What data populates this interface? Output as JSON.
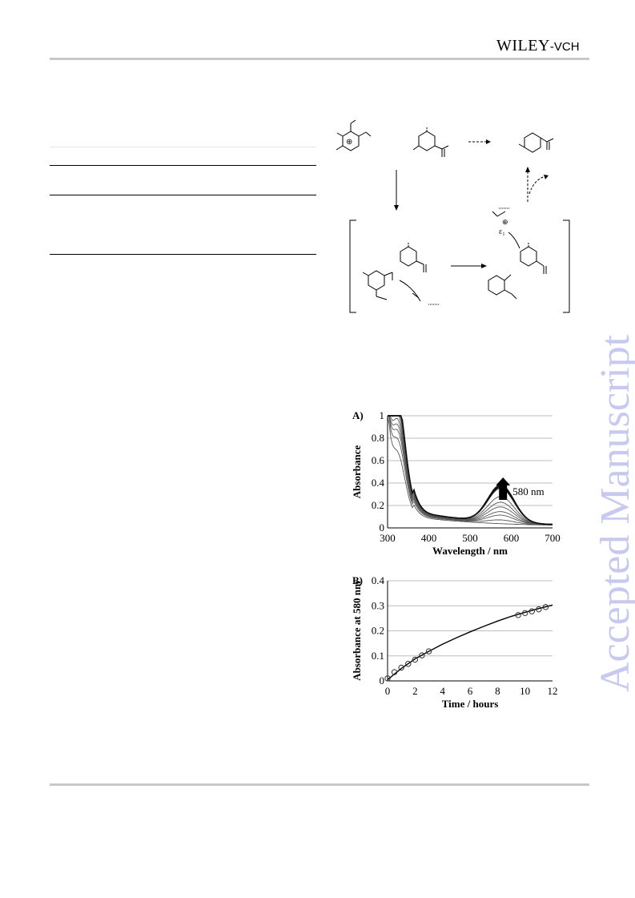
{
  "header": {
    "brand_wiley": "WILEY",
    "brand_suffix": "-VCH"
  },
  "watermark": {
    "text": "Accepted Manuscript",
    "color": "#c7c9ee"
  },
  "scheme": {
    "charge_label": "⊕",
    "counter_label": "ε₁"
  },
  "chart_data": [
    {
      "type": "line",
      "panel_label": "A)",
      "xlabel": "Wavelength / nm",
      "ylabel": "Absorbance",
      "xlim": [
        300,
        700
      ],
      "ylim": [
        0,
        1
      ],
      "xticks": [
        300,
        400,
        500,
        600,
        700
      ],
      "yticks": [
        0,
        0.2,
        0.4,
        0.6,
        0.8,
        1
      ],
      "ytick_labels": [
        "0",
        "0.2",
        "0.4",
        "0.6",
        "0.8",
        "1"
      ],
      "grid": true,
      "annotation": "580 nm",
      "series": [
        {
          "peak1": 0.43,
          "peak2": 0.0
        },
        {
          "peak1": 0.52,
          "peak2": 0.03
        },
        {
          "peak1": 0.58,
          "peak2": 0.07
        },
        {
          "peak1": 0.62,
          "peak2": 0.1
        },
        {
          "peak1": 0.66,
          "peak2": 0.14
        },
        {
          "peak1": 0.7,
          "peak2": 0.18
        },
        {
          "peak1": 0.74,
          "peak2": 0.23
        },
        {
          "peak1": 0.78,
          "peak2": 0.3
        },
        {
          "peak1": 0.79,
          "peak2": 0.31
        },
        {
          "peak1": 0.8,
          "peak2": 0.32
        },
        {
          "peak1": 0.81,
          "peak2": 0.33
        }
      ]
    },
    {
      "type": "scatter",
      "panel_label": "B)",
      "xlabel": "Time / hours",
      "ylabel": "Absorbance at 580 nm",
      "xlim": [
        0,
        12
      ],
      "ylim": [
        0,
        0.4
      ],
      "xticks": [
        0,
        2,
        4,
        6,
        8,
        10,
        12
      ],
      "yticks": [
        0,
        0.1,
        0.2,
        0.3,
        0.4
      ],
      "ytick_labels": [
        "0",
        "0.1",
        "0.2",
        "0.3",
        "0.4"
      ],
      "grid": true,
      "points": [
        [
          0,
          0.01
        ],
        [
          0.5,
          0.035
        ],
        [
          1.0,
          0.053
        ],
        [
          1.5,
          0.068
        ],
        [
          2.0,
          0.085
        ],
        [
          2.5,
          0.102
        ],
        [
          3.0,
          0.118
        ],
        [
          9.5,
          0.263
        ],
        [
          10.0,
          0.271
        ],
        [
          10.5,
          0.278
        ],
        [
          11.0,
          0.286
        ],
        [
          11.5,
          0.295
        ]
      ],
      "fit": [
        [
          0,
          0.005
        ],
        [
          1,
          0.05
        ],
        [
          2,
          0.088
        ],
        [
          3,
          0.118
        ],
        [
          4,
          0.147
        ],
        [
          5,
          0.172
        ],
        [
          6,
          0.196
        ],
        [
          7,
          0.218
        ],
        [
          8,
          0.239
        ],
        [
          9,
          0.258
        ],
        [
          10,
          0.274
        ],
        [
          11,
          0.289
        ],
        [
          12,
          0.303
        ]
      ]
    }
  ]
}
